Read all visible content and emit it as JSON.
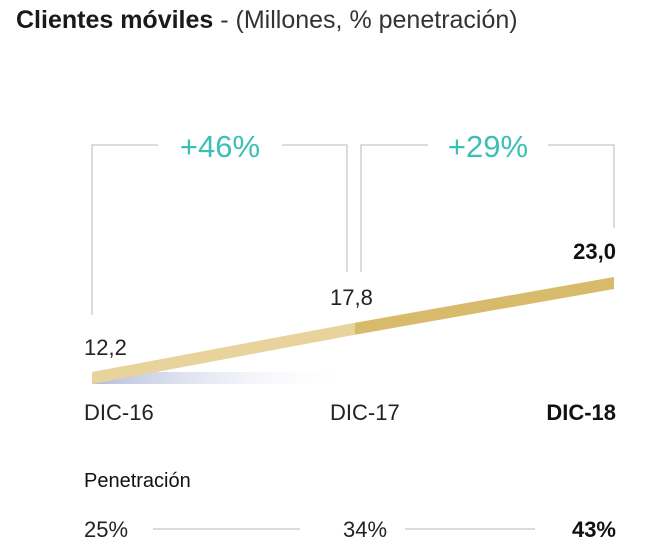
{
  "chart_data": {
    "type": "line",
    "title": "Clientes móviles",
    "subtitle": "- (Millones, % penetración)",
    "categories": [
      "DIC-16",
      "DIC-17",
      "DIC-18"
    ],
    "series": [
      {
        "name": "Clientes móviles (Millones)",
        "values": [
          12.2,
          17.8,
          23.0
        ],
        "labels": [
          "12,2",
          "17,8",
          "23,0"
        ]
      }
    ],
    "growth": [
      {
        "from": "DIC-16",
        "to": "DIC-17",
        "label": "+46%"
      },
      {
        "from": "DIC-17",
        "to": "DIC-18",
        "label": "+29%"
      }
    ],
    "penetration": {
      "label": "Penetración",
      "values": [
        25,
        34,
        43
      ],
      "labels": [
        "25%",
        "34%",
        "43%"
      ]
    },
    "colors": {
      "growth_text": "#3bbfb7",
      "band_light": "#e9d39c",
      "band_dark": "#d8bb6a",
      "shadow": "#b9c2dd",
      "bracket": "#c8c8c8"
    },
    "highlight_last": true
  }
}
